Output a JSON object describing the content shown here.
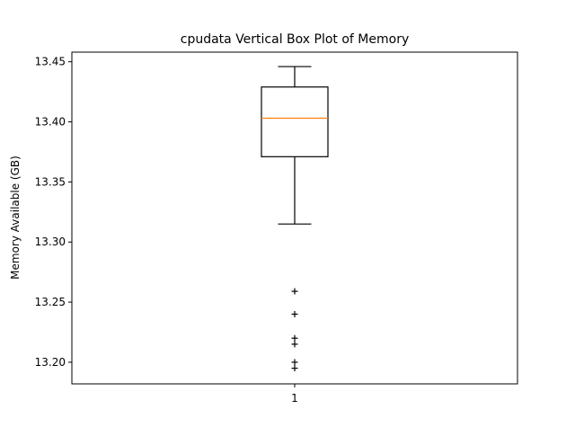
{
  "chart_data": {
    "type": "box",
    "title": "cpudata Vertical Box Plot of Memory",
    "xlabel": "",
    "ylabel": "Memory Available (GB)",
    "categories": [
      "1"
    ],
    "ylim": [
      13.182,
      13.458
    ],
    "yticks": [
      13.2,
      13.25,
      13.3,
      13.35,
      13.4,
      13.45
    ],
    "ytick_labels": [
      "13.20",
      "13.25",
      "13.30",
      "13.35",
      "13.40",
      "13.45"
    ],
    "grid": false,
    "boxes": [
      {
        "category": "1",
        "whisker_low": 13.315,
        "q1": 13.371,
        "median": 13.403,
        "q3": 13.429,
        "whisker_high": 13.446,
        "outliers": [
          13.259,
          13.24,
          13.22,
          13.215,
          13.2,
          13.195
        ]
      }
    ],
    "colors": {
      "box": "#000000",
      "median": "#ff7f0e",
      "axes": "#000000"
    },
    "outlier_marker": "+"
  }
}
